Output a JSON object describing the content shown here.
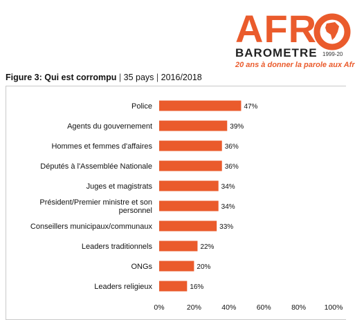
{
  "logo": {
    "word": "AFRO",
    "subword": "BAROMETRE",
    "years": "1999-20",
    "tagline": "20 ans à donner la parole aux Afr"
  },
  "figure": {
    "label": "Figure 3: Qui est corrompu",
    "countries": "35 pays",
    "period": "2016/2018"
  },
  "colors": {
    "bar": "#ea5b2c",
    "logo_orange": "#ea5b2c"
  },
  "chart_data": {
    "type": "bar",
    "orientation": "horizontal",
    "categories": [
      "Police",
      "Agents du gouvernement",
      "Hommes et femmes d'affaires",
      "Députés à l'Assemblée Nationale",
      "Juges et magistrats",
      "Président/Premier ministre et son personnel",
      "Conseillers municipaux/communaux",
      "Leaders traditionnels",
      "ONGs",
      "Leaders religieux"
    ],
    "category_lines": [
      [
        "Police"
      ],
      [
        "Agents du gouvernement"
      ],
      [
        "Hommes et femmes d'affaires"
      ],
      [
        "Députés à l'Assemblée Nationale"
      ],
      [
        "Juges et magistrats"
      ],
      [
        "Président/Premier ministre et son",
        "personnel"
      ],
      [
        "Conseillers municipaux/communaux"
      ],
      [
        "Leaders traditionnels"
      ],
      [
        "ONGs"
      ],
      [
        "Leaders religieux"
      ]
    ],
    "values": [
      47,
      39,
      36,
      36,
      34,
      34,
      33,
      22,
      20,
      16
    ],
    "value_labels": [
      "47%",
      "39%",
      "36%",
      "36%",
      "34%",
      "34%",
      "33%",
      "22%",
      "20%",
      "16%"
    ],
    "xlim": [
      0,
      100
    ],
    "xticks": [
      0,
      20,
      40,
      60,
      80,
      100
    ],
    "xtick_labels": [
      "0%",
      "20%",
      "40%",
      "60%",
      "80%",
      "100%"
    ],
    "grid": false
  }
}
